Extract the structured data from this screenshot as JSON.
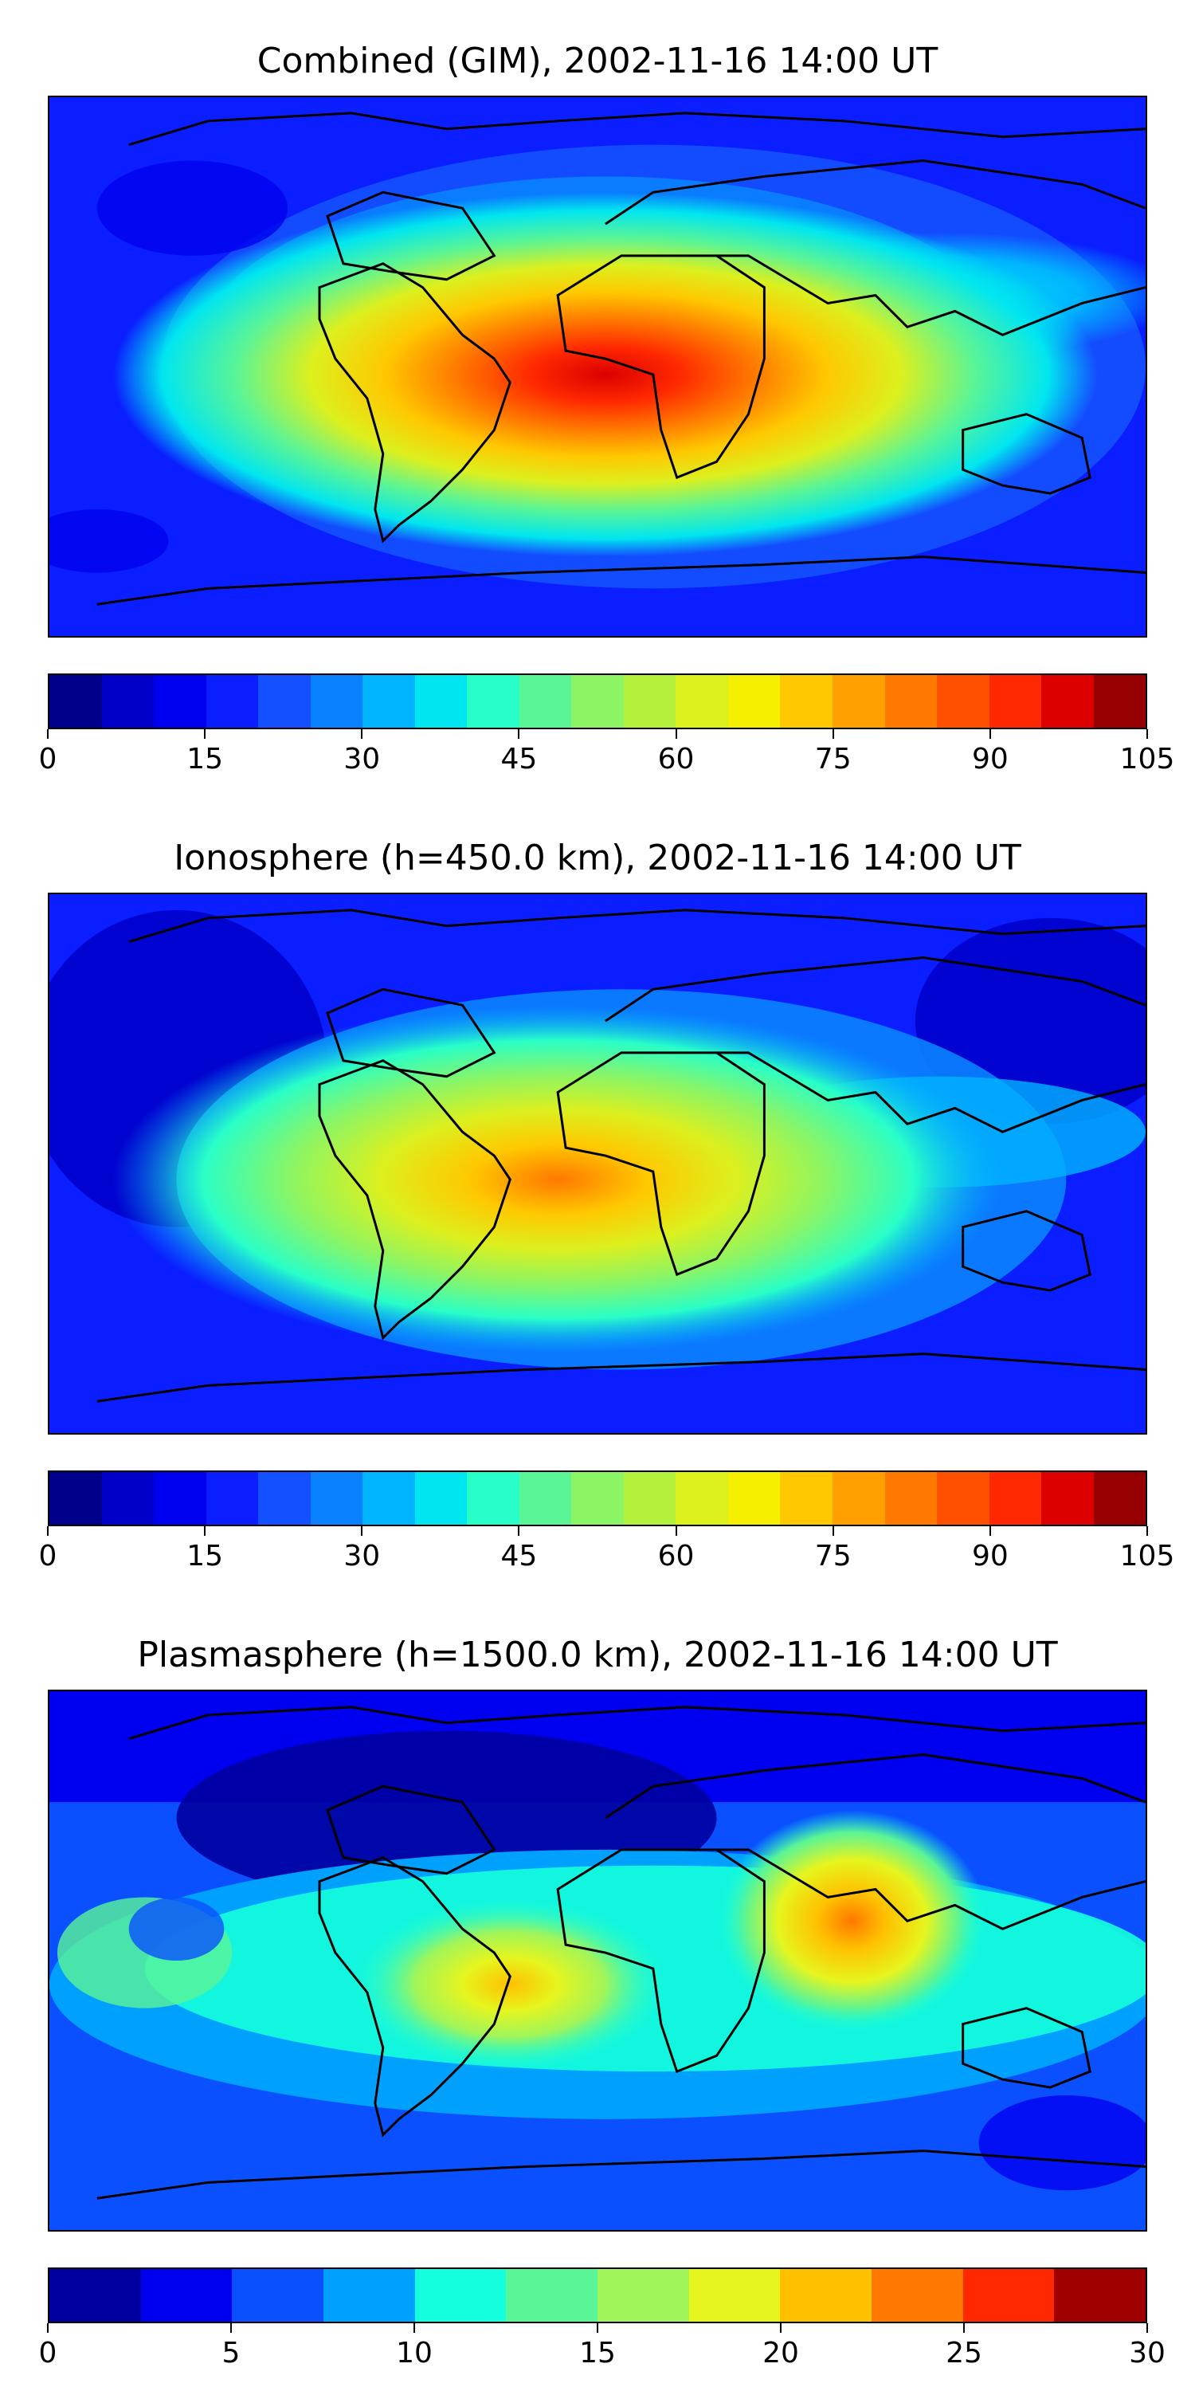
{
  "chart_data": [
    {
      "type": "heatmap",
      "title": "Combined (GIM), 2002-11-16 14:00 UT",
      "colorbar": {
        "ticks": [
          "0",
          "15",
          "30",
          "45",
          "60",
          "75",
          "90",
          "105"
        ],
        "range": [
          0,
          105
        ],
        "levels": 21,
        "colors": [
          "#00008b",
          "#0000c8",
          "#0000f0",
          "#0a1eff",
          "#1450ff",
          "#0a82ff",
          "#00b4ff",
          "#00e6f0",
          "#28ffc8",
          "#5af596",
          "#8cf564",
          "#b4f03c",
          "#dcf01e",
          "#f5f000",
          "#ffc800",
          "#ffa000",
          "#ff7800",
          "#ff5000",
          "#ff2800",
          "#dc0000",
          "#960000"
        ]
      },
      "hotspots": [
        {
          "name": "africa-peak",
          "value": 100
        },
        {
          "name": "south-america",
          "value": 80
        },
        {
          "name": "asia-band",
          "value": 45
        }
      ]
    },
    {
      "type": "heatmap",
      "title": "Ionosphere  (h=450.0 km), 2002-11-16 14:00 UT",
      "colorbar": {
        "ticks": [
          "0",
          "15",
          "30",
          "45",
          "60",
          "75",
          "90",
          "105"
        ],
        "range": [
          0,
          105
        ],
        "levels": 21,
        "colors": [
          "#00008b",
          "#0000c8",
          "#0000f0",
          "#0a1eff",
          "#1450ff",
          "#0a82ff",
          "#00b4ff",
          "#00e6f0",
          "#28ffc8",
          "#5af596",
          "#8cf564",
          "#b4f03c",
          "#dcf01e",
          "#f5f000",
          "#ffc800",
          "#ffa000",
          "#ff7800",
          "#ff5000",
          "#ff2800",
          "#dc0000",
          "#960000"
        ]
      },
      "hotspots": [
        {
          "name": "africa-peak",
          "value": 82
        },
        {
          "name": "south-america",
          "value": 65
        },
        {
          "name": "asia-band",
          "value": 40
        }
      ]
    },
    {
      "type": "heatmap",
      "title": "Plasmasphere (h=1500.0 km), 2002-11-16 14:00 UT",
      "colorbar": {
        "ticks": [
          "0",
          "5",
          "10",
          "15",
          "20",
          "25",
          "30"
        ],
        "range": [
          0,
          30
        ],
        "levels": 12,
        "colors": [
          "#0000a0",
          "#0000f0",
          "#0a50ff",
          "#00a0ff",
          "#14ffdc",
          "#5af596",
          "#a0f55a",
          "#e6f51e",
          "#ffc000",
          "#ff7800",
          "#ff2800",
          "#a00000"
        ]
      },
      "hotspots": [
        {
          "name": "india-peak",
          "value": 22
        },
        {
          "name": "brazil-peak",
          "value": 21
        },
        {
          "name": "atlantic-low",
          "value": 2
        }
      ]
    }
  ]
}
